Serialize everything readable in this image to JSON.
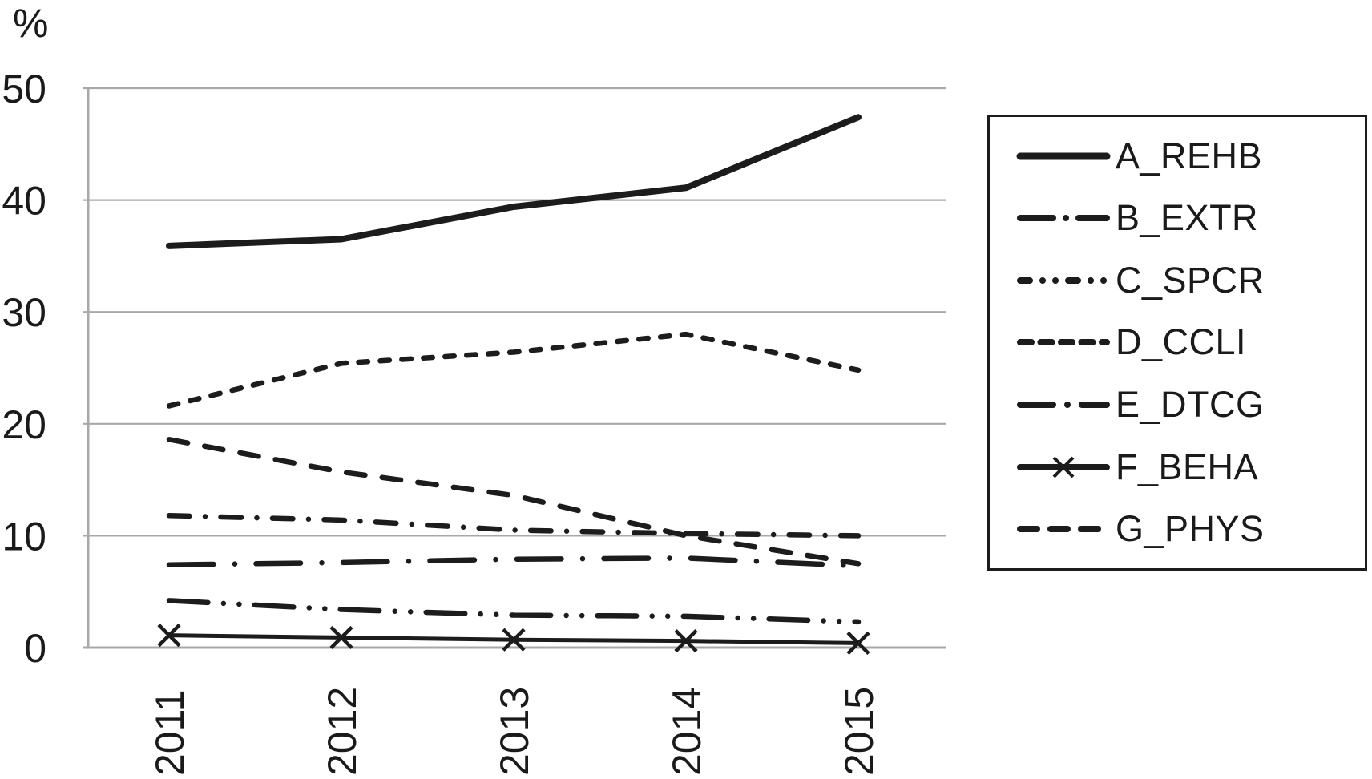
{
  "chart_data": {
    "type": "line",
    "title": "",
    "ylabel": "%",
    "xlabel": "",
    "categories": [
      "2011",
      "2012",
      "2013",
      "2014",
      "2015"
    ],
    "ylim": [
      0,
      50
    ],
    "yticks": [
      "0",
      "10",
      "20",
      "30",
      "40",
      "50"
    ],
    "grid": true,
    "legend_position": "right-box",
    "series": [
      {
        "name": "A_REHB",
        "style": "solid",
        "values": [
          35.9,
          36.5,
          39.4,
          41.1,
          47.4
        ]
      },
      {
        "name": "B_EXTR",
        "style": "dash-dot",
        "values": [
          11.8,
          11.4,
          10.5,
          10.2,
          10.0
        ]
      },
      {
        "name": "C_SPCR",
        "style": "dash-dot-dot",
        "values": [
          4.2,
          3.4,
          2.9,
          2.8,
          2.3
        ]
      },
      {
        "name": "D_CCLI",
        "style": "short-dash",
        "values": [
          21.6,
          25.4,
          26.4,
          28.0,
          24.8
        ]
      },
      {
        "name": "E_DTCG",
        "style": "long-dash-dot",
        "values": [
          7.4,
          7.6,
          7.9,
          8.0,
          7.3
        ]
      },
      {
        "name": "F_BEHA",
        "style": "solid-x-marker",
        "values": [
          1.1,
          0.9,
          0.7,
          0.6,
          0.4
        ]
      },
      {
        "name": "G_PHYS",
        "style": "medium-dash",
        "values": [
          18.6,
          15.7,
          13.6,
          10.0,
          7.5
        ]
      }
    ],
    "colors": {
      "line": "#1c1c1c",
      "grid": "#a8a8a8",
      "text": "#1a1a1a",
      "background": "#ffffff"
    }
  }
}
